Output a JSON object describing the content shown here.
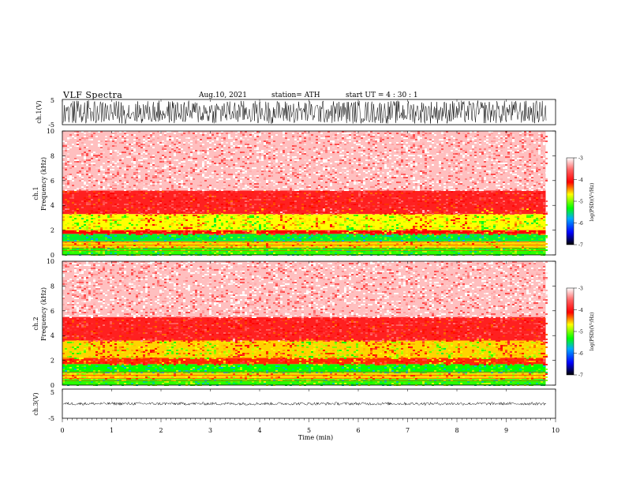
{
  "header": {
    "title": "VLF  Spectra",
    "date": "Aug.10, 2021",
    "station": "station= ATH",
    "start": "start  UT  =   4  : 30 : 1"
  },
  "chart_data": [
    {
      "type": "line",
      "ylabel": "ch.1(V)",
      "ylim": [
        -5,
        5
      ],
      "yticks": [
        "5",
        "-5"
      ],
      "xlim": [
        0,
        10
      ],
      "description_values": {
        "amplitude_range": [
          -5,
          5
        ],
        "dense_noise_signal": true
      }
    },
    {
      "type": "heatmap",
      "ylabel_line1": "ch.1",
      "ylabel_line2": "Frequency  (kHz)",
      "ylim": [
        0,
        10
      ],
      "yticks": [
        "0",
        "2",
        "4",
        "6",
        "8",
        "10"
      ],
      "xlim": [
        0,
        9.8
      ],
      "colorbar": {
        "label": "log(PSD)(V²/Hz)",
        "ticks": [
          "-3",
          "-4",
          "-5",
          "-6",
          "-7"
        ],
        "range": [
          -7,
          -3
        ]
      },
      "bands": [
        {
          "from": 0,
          "to": 0.6,
          "level": -5.2
        },
        {
          "from": 0.6,
          "to": 1.1,
          "level": -4.6
        },
        {
          "from": 1.1,
          "to": 1.7,
          "level": -5.4
        },
        {
          "from": 1.7,
          "to": 2.0,
          "level": -4.1
        },
        {
          "from": 2.0,
          "to": 3.3,
          "level": -4.7
        },
        {
          "from": 3.3,
          "to": 5.2,
          "level": -3.9
        },
        {
          "from": 5.2,
          "to": 10,
          "level": -3.2
        }
      ]
    },
    {
      "type": "heatmap",
      "ylabel_line1": "ch.2",
      "ylabel_line2": "Frequency  (kHz)",
      "ylim": [
        0,
        10
      ],
      "yticks": [
        "0",
        "2",
        "4",
        "6",
        "8",
        "10"
      ],
      "xlim": [
        0,
        9.8
      ],
      "colorbar": {
        "label": "log(PSD)(V²/Hz)",
        "ticks": [
          "-3",
          "-4",
          "-5",
          "-6",
          "-7"
        ],
        "range": [
          -7,
          -3
        ]
      },
      "bands": [
        {
          "from": 0,
          "to": 0.5,
          "level": -5.2
        },
        {
          "from": 0.5,
          "to": 1.0,
          "level": -4.6
        },
        {
          "from": 1.0,
          "to": 1.7,
          "level": -5.3
        },
        {
          "from": 1.7,
          "to": 2.2,
          "level": -4.2
        },
        {
          "from": 2.2,
          "to": 3.6,
          "level": -4.6
        },
        {
          "from": 3.6,
          "to": 5.5,
          "level": -3.9
        },
        {
          "from": 5.5,
          "to": 10,
          "level": -3.2
        }
      ]
    },
    {
      "type": "line",
      "ylabel": "ch.3(V)",
      "ylim": [
        -5,
        5
      ],
      "yticks": [
        "5",
        "-5"
      ],
      "xlim": [
        0,
        10
      ],
      "description_values": {
        "constant_level": 0,
        "narrow_noise": true
      }
    }
  ],
  "xaxis": {
    "label": "Time  (min)",
    "ticks": [
      "0",
      "1",
      "2",
      "3",
      "4",
      "5",
      "6",
      "7",
      "8",
      "9",
      "10"
    ],
    "range": [
      0,
      10
    ]
  },
  "colors": {
    "scale": [
      "#000000",
      "#0000ff",
      "#00ffff",
      "#00ff00",
      "#ffff00",
      "#ff0000",
      "#ffffff"
    ]
  }
}
